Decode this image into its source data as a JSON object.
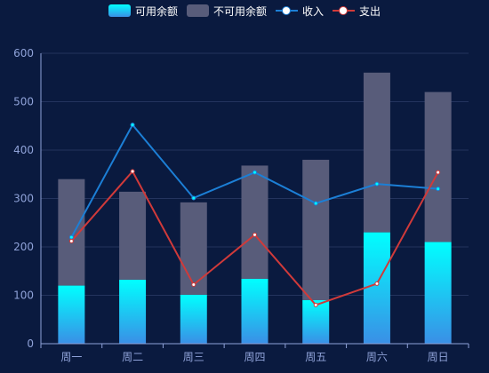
{
  "chart_data": {
    "type": "bar",
    "categories": [
      "周一",
      "周二",
      "周三",
      "周四",
      "周五",
      "周六",
      "周日"
    ],
    "series": [
      {
        "name": "可用余额",
        "type": "bar",
        "stack": "balance",
        "values": [
          120,
          132,
          101,
          134,
          90,
          230,
          210
        ],
        "color_top": "#00ffff",
        "color_bottom": "#3a8fe6"
      },
      {
        "name": "不可用余额",
        "type": "bar",
        "stack": "balance",
        "values": [
          220,
          182,
          191,
          234,
          290,
          330,
          310
        ],
        "color": "#585c7a"
      },
      {
        "name": "收入",
        "type": "line",
        "values": [
          220,
          452,
          301,
          354,
          290,
          330,
          320
        ],
        "color": "#1c7fd6",
        "marker_color": "#00ffff"
      },
      {
        "name": "支出",
        "type": "line",
        "values": [
          212,
          356,
          122,
          225,
          80,
          124,
          354
        ],
        "color": "#d03a3a",
        "marker_color": "#ffffff"
      }
    ],
    "ylim": [
      0,
      600
    ],
    "yticks": [
      0,
      100,
      200,
      300,
      400,
      500,
      600
    ],
    "grid": true,
    "legend_position": "top-center",
    "title": "",
    "xlabel": "",
    "ylabel": ""
  },
  "colors": {
    "background": "#0a1a3f",
    "axis": "#8fa2d8",
    "grid": "#24345e",
    "tick_label": "#8fa2d8"
  }
}
